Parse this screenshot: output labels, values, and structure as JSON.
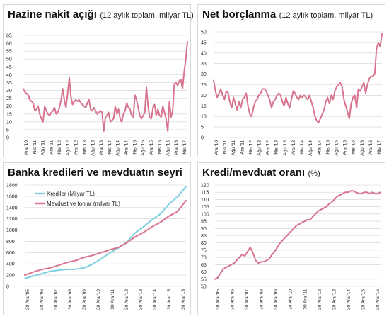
{
  "colors": {
    "pink": "#d9748f",
    "cyan": "#7fcfe0",
    "grid": "#cfcfcf"
  },
  "chart_data": [
    {
      "type": "line",
      "title": "Hazine nakit açığı",
      "subtitle": "(12 aylık toplam, milyar TL)",
      "ylim": [
        0,
        65
      ],
      "yticks": [
        0,
        5,
        10,
        15,
        20,
        25,
        30,
        35,
        40,
        45,
        50,
        55,
        60,
        65
      ],
      "xticks": [
        "Ara '10",
        "Nis '11",
        "Ağu '11",
        "Ara '11",
        "Nis '12",
        "Ağu '12",
        "Ara '12",
        "Nis '13",
        "Ağu '13",
        "Ara '13",
        "Nis '14",
        "Ağu '14",
        "Ara '14",
        "Nis '15",
        "Ağu '15",
        "Ara '15",
        "Nis '16",
        "Ağu '16",
        "Ara '16",
        "Nis '17"
      ],
      "grid": true,
      "series": [
        {
          "name": "",
          "color": "#d9748f",
          "values": [
            31,
            29,
            28,
            27,
            24,
            23,
            22,
            17,
            18,
            20,
            15,
            12,
            10,
            20,
            17,
            15,
            14,
            16,
            17,
            19,
            15,
            16,
            19,
            24,
            31,
            24,
            19,
            28,
            38,
            26,
            21,
            23,
            24,
            23,
            24,
            22,
            21,
            20,
            19,
            22,
            24,
            18,
            17,
            19,
            17,
            15,
            16,
            17,
            16,
            4,
            13,
            14,
            16,
            10,
            11,
            12,
            20,
            15,
            18,
            12,
            10,
            15,
            17,
            22,
            19,
            18,
            14,
            13,
            27,
            24,
            19,
            14,
            12,
            14,
            16,
            32,
            20,
            13,
            12,
            19,
            21,
            14,
            18,
            14,
            13,
            20,
            16,
            12,
            4,
            23,
            13,
            17,
            34,
            35,
            33,
            36,
            37,
            31,
            42,
            50,
            61
          ]
        }
      ]
    },
    {
      "type": "line",
      "title": "Net borçlanma",
      "subtitle": "(12 aylık toplam, milyar TL)",
      "ylim": [
        0,
        50
      ],
      "yticks": [
        0,
        5,
        10,
        15,
        20,
        25,
        30,
        35,
        40,
        45,
        50
      ],
      "xticks": [
        "Ara '10",
        "Nis '11",
        "Ağu '11",
        "Ara '11",
        "Nis '12",
        "Ağu '12",
        "Ara '12",
        "Nis '13",
        "Ağu '13",
        "Ara '13",
        "Nis '14",
        "Ağu '14",
        "Ara '14",
        "Nis '15",
        "Ağu '15",
        "Ara '15",
        "Nis '16",
        "Ağu '16",
        "Ara '16",
        "Nis '17"
      ],
      "grid": true,
      "series": [
        {
          "name": "",
          "color": "#d9748f",
          "values": [
            27,
            22,
            19,
            21,
            23,
            20,
            18,
            22,
            21,
            17,
            14,
            19,
            16,
            13,
            17,
            14,
            18,
            19,
            21,
            15,
            11,
            10,
            14,
            17,
            18,
            20,
            21,
            23,
            23,
            22,
            20,
            18,
            14,
            17,
            18,
            20,
            21,
            20,
            17,
            15,
            19,
            16,
            14,
            18,
            22,
            21,
            19,
            18,
            20,
            19,
            20,
            19,
            18,
            20,
            17,
            14,
            10,
            8,
            7,
            9,
            11,
            13,
            17,
            19,
            16,
            20,
            18,
            22,
            24,
            25,
            26,
            24,
            18,
            15,
            12,
            9,
            16,
            19,
            20,
            14,
            23,
            22,
            24,
            26,
            21,
            25,
            28,
            29,
            29,
            30,
            42,
            45,
            43,
            49
          ]
        }
      ]
    },
    {
      "type": "line",
      "title": "Banka kredileri ve mevduatın seyri",
      "ylim": [
        0,
        1800
      ],
      "yticks": [
        0,
        200,
        400,
        600,
        800,
        1000,
        1200,
        1400,
        1600,
        1800
      ],
      "xticks": [
        "30 Ara '05",
        "30 Ara '06",
        "30 Ara '07",
        "30 Ara '08",
        "30 Ara '09",
        "30 Ara '10",
        "30 Ara '11",
        "30 Ara '12",
        "30 Ara '13",
        "30 Ara '14",
        "30 Ara '15",
        "30 Ara '16"
      ],
      "legend_position": "top-left",
      "grid": true,
      "series": [
        {
          "name": "Krediler (Milyar TL)",
          "color": "#7fcfe0",
          "values": [
            140,
            185,
            225,
            268,
            290,
            302,
            305,
            330,
            395,
            490,
            590,
            680,
            780,
            950,
            1060,
            1185,
            1290,
            1465,
            1590,
            1775
          ]
        },
        {
          "name": "Mevduat ve fonlar (milyar TL)",
          "color": "#d9748f",
          "values": [
            200,
            255,
            300,
            330,
            375,
            425,
            460,
            515,
            550,
            600,
            650,
            690,
            770,
            880,
            960,
            1060,
            1140,
            1250,
            1330,
            1525
          ]
        }
      ]
    },
    {
      "type": "line",
      "title": "Kredi/mevduat oranı",
      "subtitle": "(%)",
      "ylim": [
        50,
        120
      ],
      "yticks": [
        50,
        55,
        60,
        65,
        70,
        75,
        80,
        85,
        90,
        95,
        100,
        105,
        110,
        115,
        120
      ],
      "xticks": [
        "30 Ara '05",
        "30 Ara '06",
        "30 Ara '07",
        "30 Ara '08",
        "30 Ara '09",
        "30 Ara '10",
        "30 Ara '11",
        "30 Ara '12",
        "30 Ara '13",
        "30 Ara '14",
        "30 Ara '15",
        "30 Ara '16"
      ],
      "grid": true,
      "series": [
        {
          "name": "",
          "color": "#d9748f",
          "values": [
            55,
            56,
            59,
            62,
            63,
            64,
            65,
            66,
            68,
            70,
            72,
            71,
            74,
            77,
            73,
            68,
            66,
            67,
            67,
            68,
            69,
            72,
            74,
            77,
            80,
            82,
            84,
            86,
            88,
            90,
            92,
            93,
            94,
            95,
            96,
            96,
            98,
            100,
            102,
            103,
            104,
            105,
            107,
            108,
            110,
            112,
            113,
            114,
            115,
            115,
            116,
            116,
            115,
            114,
            114,
            115,
            115,
            114,
            115,
            114,
            114,
            115
          ]
        }
      ]
    }
  ]
}
